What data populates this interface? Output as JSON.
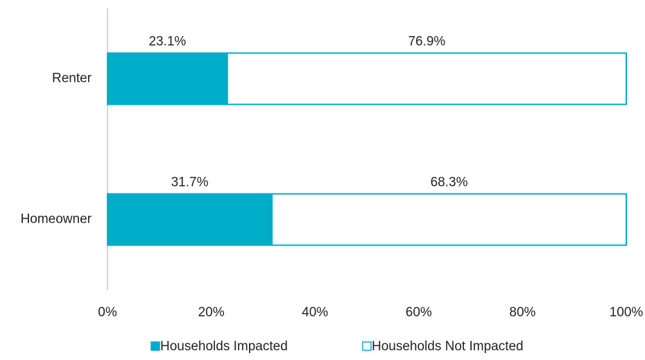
{
  "chart_data": {
    "type": "stacked_barh",
    "categories": [
      "Renter",
      "Homeowner"
    ],
    "series": [
      {
        "name": "Households Impacted",
        "color": "#00adc8",
        "values": [
          23.1,
          31.7
        ],
        "value_labels": [
          "23.1%",
          "31.7%"
        ]
      },
      {
        "name": "Households Not Impacted",
        "color": "#ffffff",
        "values": [
          76.9,
          68.3
        ],
        "value_labels": [
          "76.9%",
          "68.3%"
        ]
      }
    ],
    "edgecolor": "#00adc8",
    "xlim": [
      0,
      100
    ],
    "xticks": [
      {
        "value": 0,
        "label": "0%"
      },
      {
        "value": 20,
        "label": "20%"
      },
      {
        "value": 40,
        "label": "40%"
      },
      {
        "value": 60,
        "label": "60%"
      },
      {
        "value": 80,
        "label": "80%"
      },
      {
        "value": 100,
        "label": "100%"
      }
    ],
    "legend": "bottom"
  }
}
